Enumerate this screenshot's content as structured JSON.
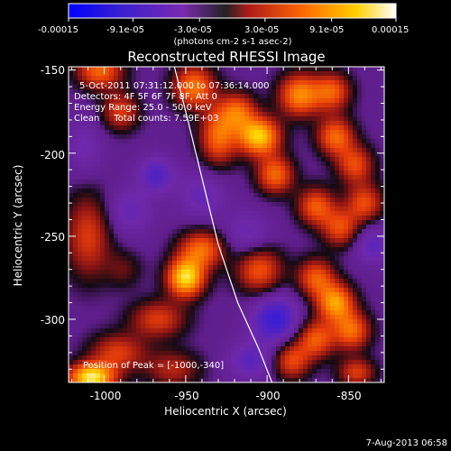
{
  "colorbar": {
    "tick_labels": [
      "-0.00015",
      "-9.1e-05",
      "-3.0e-05",
      "3.0e-05",
      "9.1e-05",
      "0.00015"
    ],
    "unit_label": "(photons cm-2 s-1 asec-2)",
    "range": [
      -0.00015,
      0.00015
    ],
    "colors": [
      "#0000ff",
      "#4a1ec8",
      "#7a2ab0",
      "#b01a1a",
      "#ff6a00",
      "#ffd000",
      "#ffffff"
    ]
  },
  "chart_data": {
    "type": "heatmap",
    "title": "Reconstructed RHESSI Image",
    "xlabel": "Heliocentric X (arcsec)",
    "ylabel": "Heliocentric Y (arcsec)",
    "xlim": [
      -1022,
      -828
    ],
    "ylim": [
      -338,
      -148
    ],
    "x_ticks": [
      -1000,
      -950,
      -900,
      -850
    ],
    "y_ticks": [
      -150,
      -200,
      -250,
      -300
    ],
    "annotations": [
      "5-Oct-2011 07:31:12.000 to 07:36:14.000",
      "Detectors: 4F 5F 6F 7F 8F, Att 0",
      "Energy Range: 25.0 - 50.0 keV",
      "Clean     Total counts: 7.59E+03"
    ],
    "peak_label": "Position of Peak = [-1000,-340]",
    "peak_position": [
      -1000,
      -340
    ],
    "limb_curve": [
      [
        -957,
        -148
      ],
      [
        -950,
        -175
      ],
      [
        -940,
        -215
      ],
      [
        -930,
        -255
      ],
      [
        -918,
        -290
      ],
      [
        -905,
        -318
      ],
      [
        -897,
        -338
      ]
    ],
    "sources": [
      {
        "x": -1003,
        "y": -150,
        "v": 0.6,
        "sx": 10,
        "sy": 8
      },
      {
        "x": -990,
        "y": -175,
        "v": 0.45,
        "sx": 8,
        "sy": 8
      },
      {
        "x": -1012,
        "y": -197,
        "v": -0.2,
        "sx": 8,
        "sy": 12
      },
      {
        "x": -968,
        "y": -213,
        "v": -0.35,
        "sx": 8,
        "sy": 8
      },
      {
        "x": -1010,
        "y": -250,
        "v": 0.45,
        "sx": 10,
        "sy": 18
      },
      {
        "x": -988,
        "y": -270,
        "v": 0.2,
        "sx": 8,
        "sy": 8
      },
      {
        "x": -950,
        "y": -275,
        "v": 0.95,
        "sx": 8,
        "sy": 8
      },
      {
        "x": -940,
        "y": -258,
        "v": 0.6,
        "sx": 10,
        "sy": 8
      },
      {
        "x": -967,
        "y": -300,
        "v": 0.45,
        "sx": 12,
        "sy": 8
      },
      {
        "x": -992,
        "y": -320,
        "v": 0.45,
        "sx": 12,
        "sy": 8
      },
      {
        "x": -1008,
        "y": -335,
        "v": 1.0,
        "sx": 10,
        "sy": 6
      },
      {
        "x": -958,
        "y": -330,
        "v": 0.35,
        "sx": 12,
        "sy": 8
      },
      {
        "x": -945,
        "y": -160,
        "v": 0.65,
        "sx": 9,
        "sy": 9
      },
      {
        "x": -930,
        "y": -190,
        "v": 0.6,
        "sx": 8,
        "sy": 12
      },
      {
        "x": -918,
        "y": -175,
        "v": 0.55,
        "sx": 8,
        "sy": 8
      },
      {
        "x": -905,
        "y": -190,
        "v": 0.9,
        "sx": 9,
        "sy": 8
      },
      {
        "x": -895,
        "y": -213,
        "v": 0.6,
        "sx": 8,
        "sy": 8
      },
      {
        "x": -880,
        "y": -165,
        "v": 0.7,
        "sx": 9,
        "sy": 9
      },
      {
        "x": -860,
        "y": -163,
        "v": 0.55,
        "sx": 8,
        "sy": 8
      },
      {
        "x": -858,
        "y": -190,
        "v": 0.6,
        "sx": 8,
        "sy": 8
      },
      {
        "x": -846,
        "y": -207,
        "v": 0.5,
        "sx": 8,
        "sy": 8
      },
      {
        "x": -870,
        "y": -232,
        "v": 0.55,
        "sx": 8,
        "sy": 8
      },
      {
        "x": -855,
        "y": -245,
        "v": 0.5,
        "sx": 8,
        "sy": 8
      },
      {
        "x": -840,
        "y": -230,
        "v": 0.5,
        "sx": 8,
        "sy": 8
      },
      {
        "x": -905,
        "y": -270,
        "v": 0.55,
        "sx": 10,
        "sy": 10
      },
      {
        "x": -870,
        "y": -275,
        "v": 0.55,
        "sx": 8,
        "sy": 8
      },
      {
        "x": -858,
        "y": -290,
        "v": 0.75,
        "sx": 8,
        "sy": 8
      },
      {
        "x": -848,
        "y": -307,
        "v": 0.6,
        "sx": 8,
        "sy": 8
      },
      {
        "x": -870,
        "y": -312,
        "v": 0.55,
        "sx": 8,
        "sy": 8
      },
      {
        "x": -885,
        "y": -325,
        "v": 0.5,
        "sx": 8,
        "sy": 8
      },
      {
        "x": -845,
        "y": -332,
        "v": 0.45,
        "sx": 8,
        "sy": 6
      },
      {
        "x": -912,
        "y": -250,
        "v": -0.25,
        "sx": 10,
        "sy": 10
      },
      {
        "x": -895,
        "y": -300,
        "v": -0.5,
        "sx": 10,
        "sy": 10
      },
      {
        "x": -910,
        "y": -325,
        "v": -0.3,
        "sx": 10,
        "sy": 8
      },
      {
        "x": -835,
        "y": -255,
        "v": -0.3,
        "sx": 8,
        "sy": 8
      },
      {
        "x": -985,
        "y": -235,
        "v": -0.25,
        "sx": 10,
        "sy": 10
      },
      {
        "x": -940,
        "y": -225,
        "v": -0.25,
        "sx": 10,
        "sy": 10
      }
    ]
  },
  "footer": {
    "timestamp": "7-Aug-2013 06:58"
  }
}
